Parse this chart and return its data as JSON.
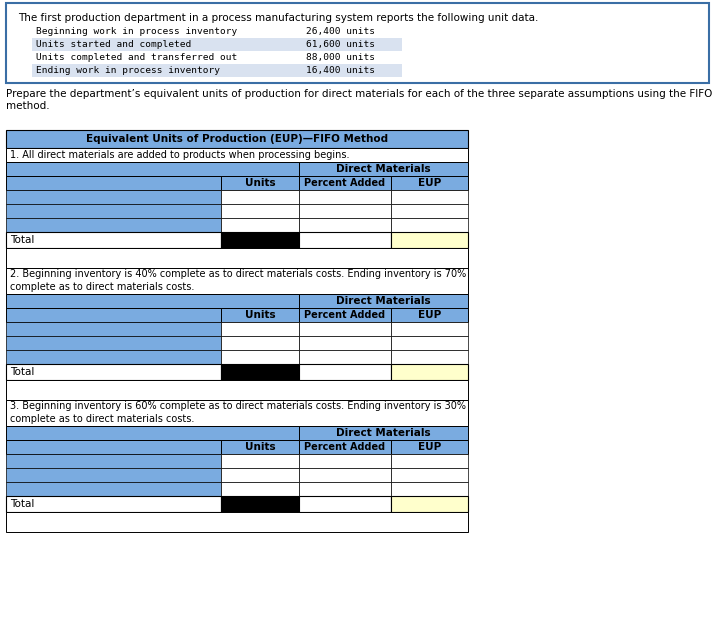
{
  "title_top": "The first production department in a process manufacturing system reports the following unit data.",
  "info_rows": [
    [
      "Beginning work in process inventory",
      "26,400 units"
    ],
    [
      "Units started and completed",
      "61,600 units"
    ],
    [
      "Units completed and transferred out",
      "88,000 units"
    ],
    [
      "Ending work in process inventory",
      "16,400 units"
    ]
  ],
  "prepare_text": "Prepare the department’s equivalent units of production for direct materials for each of the three separate assumptions using the FIFO\nmethod.",
  "table_title": "Equivalent Units of Production (EUP)—FIFO Method",
  "assumption1": "1. All direct materials are added to products when processing begins.",
  "assumption2": "2. Beginning inventory is 40% complete as to direct materials costs. Ending inventory is 70%\ncomplete as to direct materials costs.",
  "assumption3": "3. Beginning inventory is 60% complete as to direct materials costs. Ending inventory is 30%\ncomplete as to direct materials costs.",
  "header_bg": "#7aabe0",
  "row_blue_bg": "#7aabe0",
  "row_white_bg": "#ffffff",
  "total_eup_bg": "#ffffcc",
  "total_units_bg": "#000000",
  "border_color": "#000000",
  "gap_bg": "#ffffff"
}
